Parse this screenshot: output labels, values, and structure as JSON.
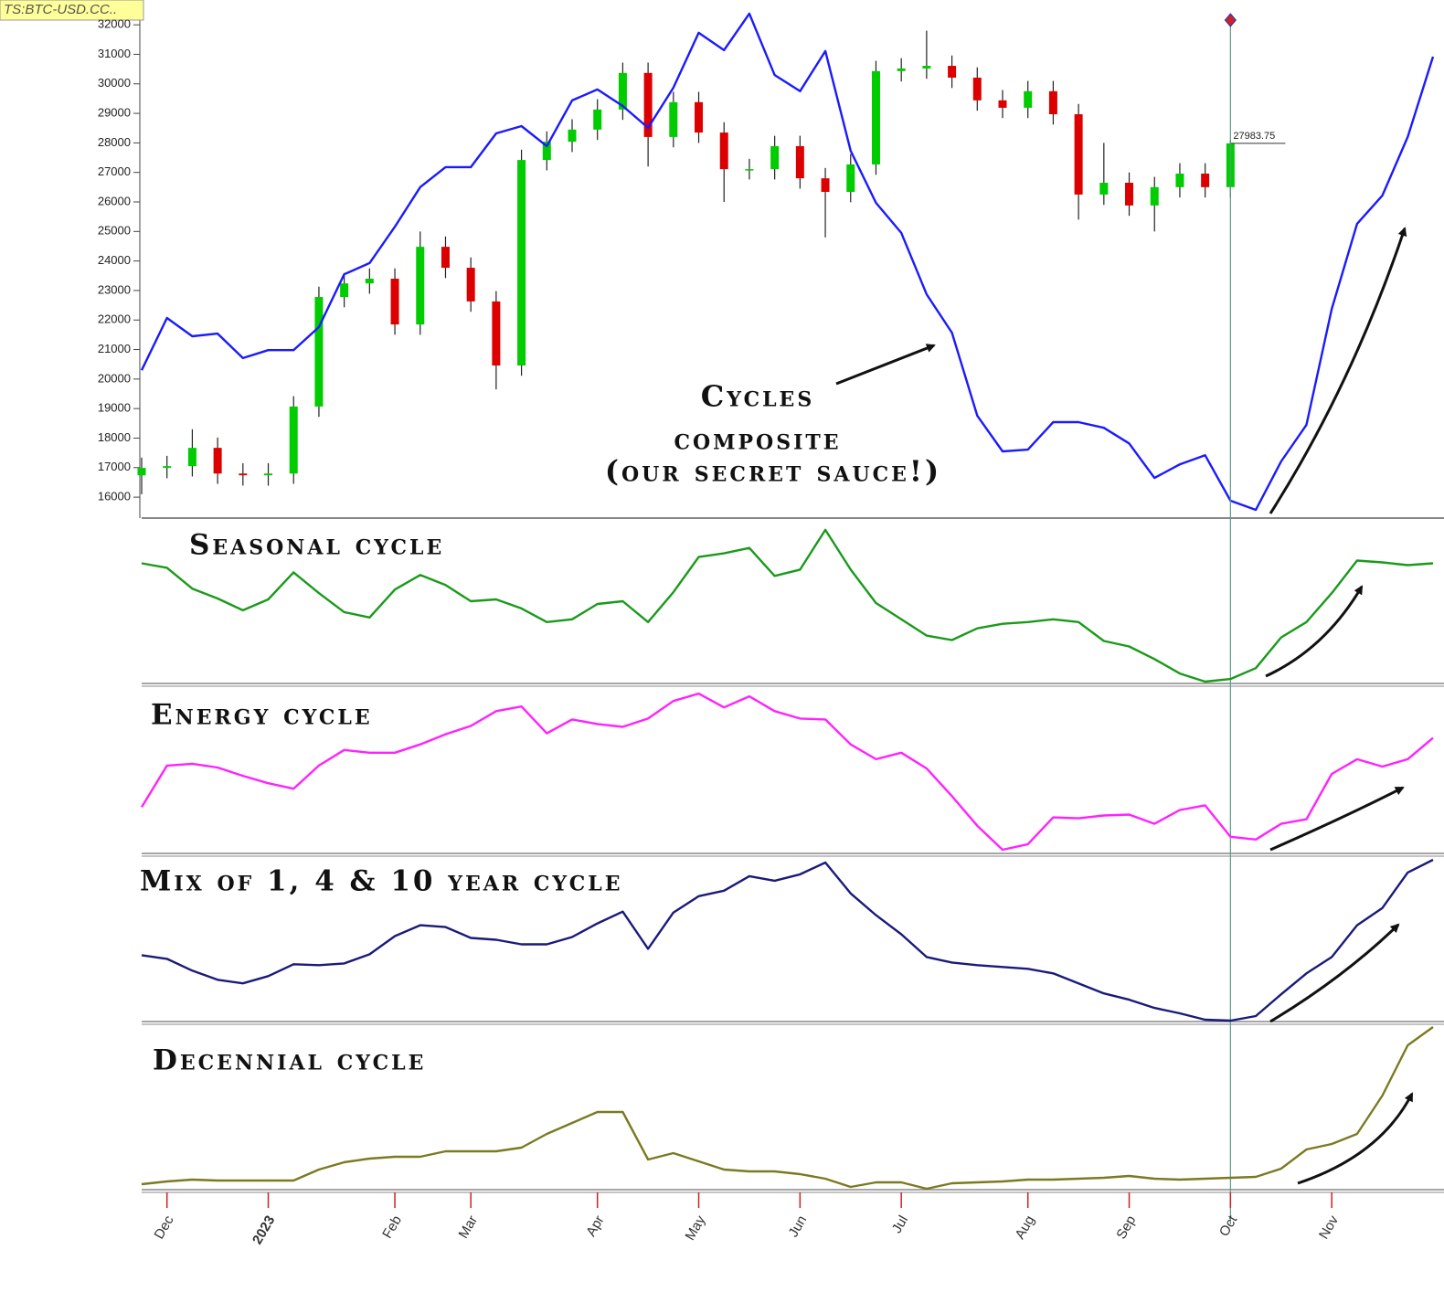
{
  "chart_data": [
    {
      "type": "candlestick",
      "label": "TS:BTC-USD.CC..",
      "open": [
        16740,
        16990,
        17050,
        17670,
        16800,
        16740,
        16800,
        19070,
        22780,
        23240,
        23400,
        21850,
        24480,
        23770,
        22630,
        20460,
        27420,
        28040,
        28450,
        29130,
        30370,
        28200,
        29380,
        28350,
        27110,
        27110,
        27890,
        26800,
        26340,
        27270,
        30430,
        30520,
        30610,
        30210,
        29440,
        29190,
        29750,
        28970,
        26250,
        26650,
        25880,
        26500,
        26960,
        26500,
        null,
        null,
        null,
        null,
        null,
        null,
        null,
        null
      ],
      "high": [
        17340,
        17400,
        18300,
        18020,
        17150,
        17150,
        19420,
        23130,
        23590,
        23750,
        23750,
        25000,
        24830,
        24120,
        22980,
        27770,
        28390,
        28800,
        29480,
        30720,
        30720,
        29730,
        29730,
        28700,
        27460,
        28240,
        28240,
        27150,
        27620,
        30780,
        30870,
        31800,
        30960,
        30560,
        29790,
        30100,
        30100,
        29320,
        28000,
        27000,
        26850,
        27310,
        27310,
        28100,
        null,
        null,
        null,
        null,
        null,
        null,
        null,
        null
      ],
      "low": [
        16100,
        16640,
        16700,
        16450,
        16390,
        16390,
        16450,
        18720,
        22430,
        22890,
        21500,
        21500,
        23420,
        22280,
        19650,
        20110,
        27070,
        27690,
        28100,
        28780,
        27200,
        27850,
        28000,
        26000,
        26760,
        26760,
        26450,
        24800,
        25990,
        26920,
        30080,
        30170,
        29860,
        29090,
        28840,
        28840,
        28620,
        25400,
        25900,
        25530,
        25000,
        26150,
        26150,
        26150,
        null,
        null,
        null,
        null,
        null,
        null,
        null,
        null
      ],
      "close": [
        16990,
        17050,
        17670,
        16800,
        16740,
        16800,
        19070,
        22780,
        23240,
        23400,
        21850,
        24480,
        23770,
        22630,
        20460,
        27420,
        28040,
        28450,
        29130,
        30370,
        28200,
        29380,
        28350,
        27110,
        27110,
        27890,
        26800,
        26340,
        27270,
        30430,
        30520,
        30610,
        30210,
        29440,
        29190,
        29750,
        28970,
        26250,
        26650,
        25880,
        26500,
        26960,
        26500,
        27983.75,
        null,
        null,
        null,
        null,
        null,
        null,
        null,
        null
      ],
      "up_color": "#00cc00",
      "down_color": "#dd0000",
      "overlay": {
        "color": "#1a1aff",
        "values": [
          20300,
          22070,
          21450,
          21540,
          20710,
          20980,
          20980,
          21760,
          23550,
          23930,
          25160,
          26500,
          27180,
          27180,
          28320,
          28570,
          27890,
          29440,
          29810,
          29250,
          28510,
          29870,
          31730,
          31140,
          32380,
          30300,
          29750,
          31110,
          27730,
          25970,
          24950,
          22870,
          21570,
          18760,
          17550,
          17610,
          18540,
          18540,
          18350,
          17820,
          16650,
          17110,
          17420,
          15880,
          15570,
          17210,
          18450,
          22380,
          25260,
          26220,
          28200,
          30920
        ]
      },
      "annotation": [
        "Cycles",
        "composite",
        "(our secret sauce!)"
      ],
      "ylim": [
        15260,
        32840
      ],
      "yticks": [
        16000,
        17000,
        18000,
        19000,
        20000,
        21000,
        22000,
        23000,
        24000,
        25000,
        26000,
        27000,
        28000,
        29000,
        30000,
        31000,
        32000
      ]
    },
    {
      "type": "line",
      "title": "Seasonal cycle",
      "color": "#1a9a1a",
      "ylim": [
        0,
        180
      ],
      "values": [
        133,
        128,
        105,
        94,
        81,
        93,
        123,
        100,
        79,
        73,
        104,
        120,
        109,
        91,
        93,
        83,
        68,
        71,
        88,
        91,
        68,
        101,
        140,
        144,
        150,
        119,
        126,
        170,
        126,
        89,
        71,
        53,
        48,
        61,
        66,
        68,
        71,
        68,
        47,
        41,
        27,
        11,
        2,
        5,
        17,
        51,
        68,
        100,
        136,
        134,
        131,
        133
      ]
    },
    {
      "type": "line",
      "title": "Energy cycle",
      "color": "#ff22ff",
      "ylim": [
        0,
        180
      ],
      "values": [
        50,
        95,
        97,
        93,
        84,
        76,
        70,
        95,
        112,
        109,
        109,
        118,
        129,
        138,
        154,
        159,
        130,
        145,
        140,
        137,
        146,
        165,
        173,
        158,
        170,
        154,
        146,
        145,
        118,
        102,
        109,
        92,
        62,
        30,
        4,
        10,
        39,
        38,
        41,
        42,
        32,
        47,
        52,
        18,
        15,
        32,
        37,
        86,
        102,
        94,
        102,
        125
      ]
    },
    {
      "type": "line",
      "title": "Mix of 1, 4 & 10 year cycle",
      "color": "#1a1a7a",
      "ylim": [
        0,
        180
      ],
      "values": [
        73,
        69,
        56,
        46,
        42,
        50,
        63,
        62,
        64,
        74,
        94,
        106,
        104,
        92,
        90,
        85,
        85,
        93,
        108,
        121,
        80,
        120,
        138,
        144,
        160,
        155,
        162,
        175,
        141,
        117,
        96,
        71,
        65,
        62,
        60,
        58,
        53,
        42,
        31,
        24,
        15,
        9,
        2,
        1,
        6,
        30,
        53,
        71,
        106,
        125,
        164,
        178
      ]
    },
    {
      "type": "line",
      "title": "Decennial cycle",
      "color": "#7a7a22",
      "ylim": [
        0,
        180
      ],
      "values": [
        6,
        9,
        11,
        10,
        10,
        10,
        10,
        22,
        30,
        34,
        36,
        36,
        42,
        42,
        42,
        46,
        61,
        73,
        85,
        85,
        33,
        40,
        31,
        22,
        20,
        20,
        17,
        12,
        3,
        8,
        8,
        1,
        7,
        8,
        9,
        11,
        11,
        12,
        13,
        15,
        12,
        11,
        12,
        13,
        14,
        23,
        44,
        50,
        61,
        103,
        158,
        178
      ],
      "categories": [
        null,
        "Dec",
        null,
        null,
        null,
        "2023",
        null,
        null,
        null,
        null,
        "Feb",
        null,
        null,
        "Mar",
        null,
        null,
        null,
        null,
        "Apr",
        null,
        null,
        null,
        "May",
        null,
        null,
        null,
        "Jun",
        null,
        null,
        null,
        "Jul",
        null,
        null,
        null,
        null,
        "Aug",
        null,
        null,
        null,
        "Sep",
        null,
        null,
        null,
        "Oct",
        null,
        null,
        null,
        "Nov",
        null,
        null,
        null,
        null
      ],
      "category_colors": {
        "2023": "#aa1111"
      }
    }
  ]
}
